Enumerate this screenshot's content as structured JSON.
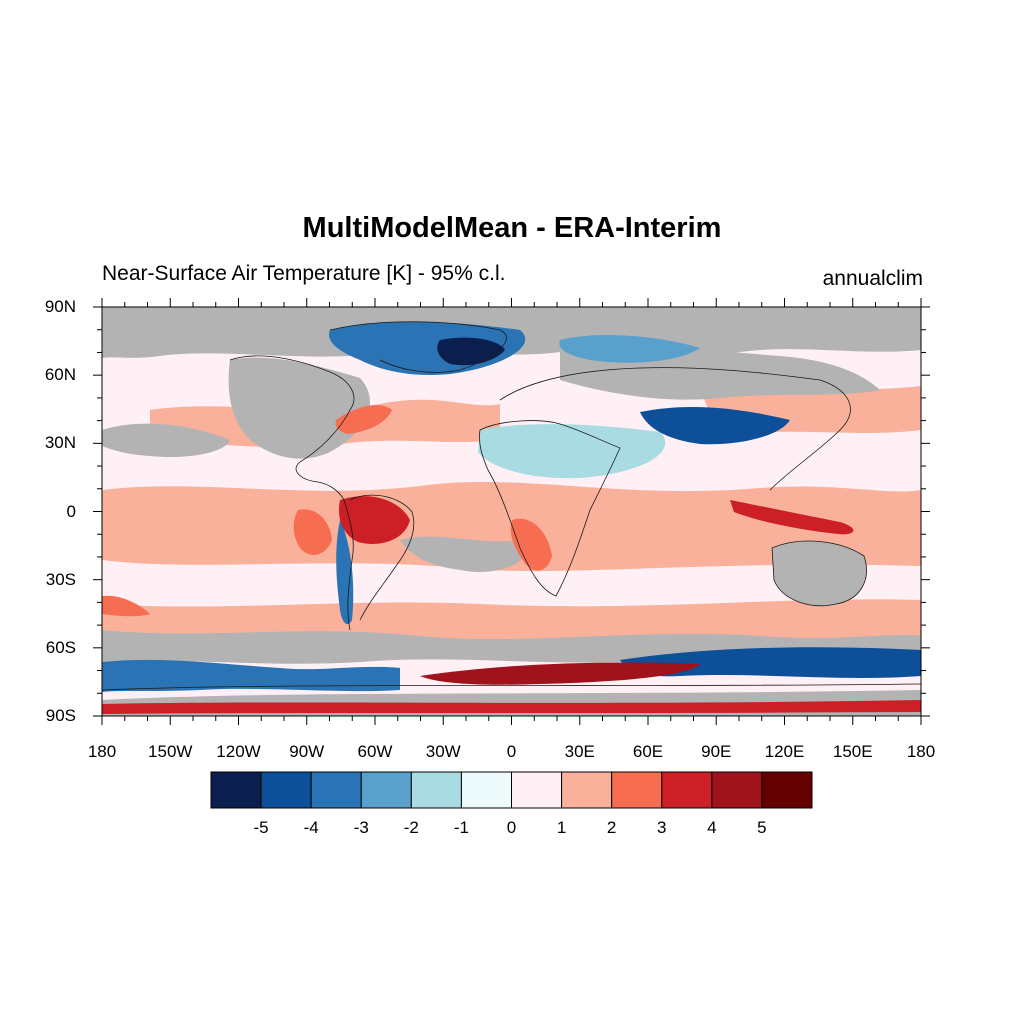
{
  "title": "MultiModelMean - ERA-Interim",
  "subtitle": "Near-Surface Air Temperature [K] - 95% c.l.",
  "period": "annualclim",
  "map": {
    "projection": "cylindrical-equidistant",
    "lon_range": [
      -180,
      180
    ],
    "lat_range": [
      -90,
      90
    ],
    "lat_labels": [
      "90N",
      "60N",
      "30N",
      "0",
      "30S",
      "60S",
      "90S"
    ],
    "lon_labels": [
      "180",
      "150W",
      "120W",
      "90W",
      "60W",
      "30W",
      "0",
      "30E",
      "60E",
      "90E",
      "120E",
      "150E",
      "180"
    ],
    "insignificant_color": "#b3b3b3"
  },
  "colorbar": {
    "colors": [
      "#0a1f4d",
      "#0d4f99",
      "#2a73b5",
      "#5aa0cc",
      "#a8dbe2",
      "#eefbfd",
      "#fff0f5",
      "#f9b19b",
      "#f76d52",
      "#cc1f26",
      "#a0121c",
      "#650000"
    ],
    "labels": [
      "-5",
      "-4",
      "-3",
      "-2",
      "-1",
      "0",
      "1",
      "2",
      "3",
      "4",
      "5"
    ]
  }
}
